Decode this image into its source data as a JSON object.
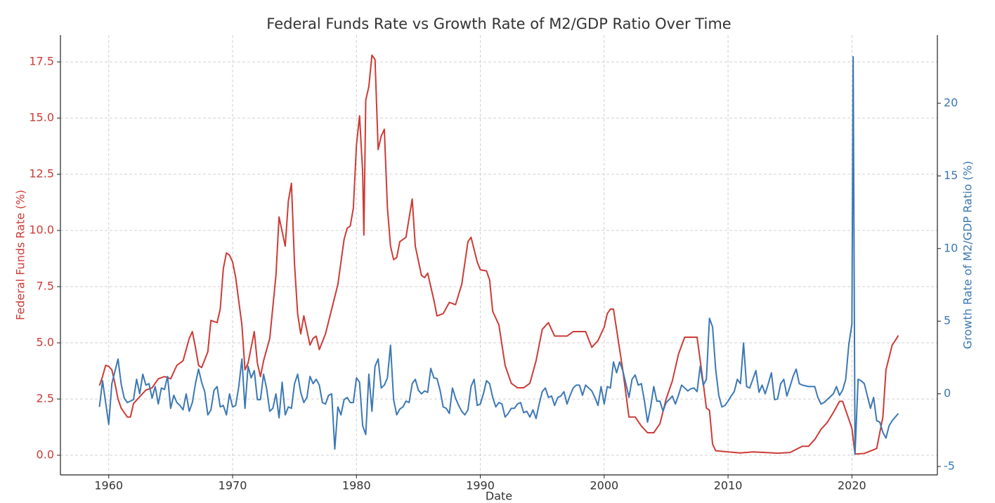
{
  "chart_data": {
    "type": "line",
    "title": "Federal Funds Rate vs Growth Rate of M2/GDP Ratio Over Time",
    "x_label": "Date",
    "y_label": "Federal Funds Rate (%)",
    "y2_label": "Growth Rate of M2/GDP Ratio (%)",
    "xlim": [
      1956.1,
      2026.9
    ],
    "xticks": [
      1960,
      1970,
      1980,
      1990,
      2000,
      2010,
      2020
    ],
    "ylim": [
      -0.875,
      18.69
    ],
    "yticks": [
      {
        "value": 0,
        "label": "0.0"
      },
      2.5,
      {
        "value": 5,
        "label": "5.0"
      },
      7.5,
      {
        "value": 10,
        "label": "10.0"
      },
      12.5,
      {
        "value": 15,
        "label": "15.0"
      },
      17.5
    ],
    "y2lim": [
      -5.58,
      24.69
    ],
    "y2ticks": [
      -5,
      0,
      5,
      10,
      15,
      20
    ],
    "grid": true,
    "series": [
      {
        "name": "Federal Funds Rate (%)",
        "color": "#cc3b36",
        "axis": "y",
        "x": [
          1959.25,
          1959.5,
          1959.75,
          1960,
          1960.25,
          1960.5,
          1960.75,
          1961,
          1961.5,
          1961.75,
          1962,
          1962.5,
          1963,
          1963.5,
          1964,
          1964.5,
          1965,
          1965.5,
          1966,
          1966.5,
          1966.75,
          1967,
          1967.25,
          1967.5,
          1968,
          1968.25,
          1968.75,
          1969,
          1969.25,
          1969.5,
          1969.75,
          1970,
          1970.25,
          1970.75,
          1971,
          1971.25,
          1971.75,
          1972,
          1972.25,
          1972.5,
          1973,
          1973.5,
          1973.75,
          1974.25,
          1974.5,
          1974.75,
          1975,
          1975.25,
          1975.5,
          1975.75,
          1976.25,
          1976.5,
          1976.75,
          1977,
          1977.5,
          1978,
          1978.5,
          1979,
          1979.25,
          1979.5,
          1979.75,
          1980,
          1980.25,
          1980.5,
          1980.6,
          1980.75,
          1981,
          1981.25,
          1981.5,
          1981.75,
          1982,
          1982.25,
          1982.5,
          1982.75,
          1983,
          1983.25,
          1983.5,
          1984,
          1984.5,
          1984.75,
          1985.25,
          1985.5,
          1985.75,
          1986.25,
          1986.5,
          1987,
          1987.5,
          1988,
          1988.5,
          1989,
          1989.25,
          1989.75,
          1990,
          1990.5,
          1990.75,
          1991,
          1991.5,
          1992,
          1992.5,
          1993,
          1993.5,
          1994,
          1994.5,
          1995,
          1995.5,
          1996,
          1996.5,
          1997,
          1997.5,
          1998,
          1998.5,
          1999,
          1999.5,
          2000,
          2000.25,
          2000.5,
          2000.75,
          2001,
          2001.5,
          2002,
          2002.5,
          2003,
          2003.5,
          2004,
          2004.5,
          2005,
          2005.5,
          2006,
          2006.5,
          2007,
          2007.5,
          2008,
          2008.25,
          2008.5,
          2008.75,
          2009,
          2010,
          2011,
          2012,
          2013,
          2014,
          2015,
          2016,
          2016.5,
          2017,
          2017.5,
          2018,
          2018.5,
          2019,
          2019.25,
          2019.75,
          2020,
          2020.25,
          2021,
          2022,
          2022.5,
          2022.75,
          2023.25,
          2023.5,
          2023.75
        ],
        "values": [
          3.1,
          3.5,
          4.0,
          3.95,
          3.8,
          3.2,
          2.5,
          2.1,
          1.7,
          1.7,
          2.3,
          2.6,
          2.9,
          3.0,
          3.4,
          3.5,
          3.4,
          4.0,
          4.2,
          5.2,
          5.5,
          4.8,
          4.0,
          3.9,
          4.6,
          6.0,
          5.9,
          6.5,
          8.3,
          9.0,
          8.9,
          8.6,
          7.9,
          5.8,
          3.8,
          4.1,
          5.5,
          4.1,
          3.5,
          4.2,
          5.2,
          8.0,
          10.6,
          9.3,
          11.3,
          12.1,
          8.5,
          6.3,
          5.4,
          6.2,
          4.9,
          5.2,
          5.3,
          4.7,
          5.4,
          6.5,
          7.6,
          9.6,
          10.1,
          10.2,
          11.0,
          13.8,
          15.1,
          12.6,
          9.8,
          15.8,
          16.4,
          17.8,
          17.6,
          13.6,
          14.2,
          14.5,
          11.0,
          9.3,
          8.7,
          8.8,
          9.5,
          9.7,
          11.4,
          9.3,
          8.0,
          7.9,
          8.1,
          6.9,
          6.2,
          6.3,
          6.8,
          6.7,
          7.6,
          9.5,
          9.7,
          8.6,
          8.25,
          8.2,
          7.8,
          6.4,
          5.8,
          4.0,
          3.2,
          3.0,
          3.0,
          3.2,
          4.2,
          5.6,
          5.9,
          5.3,
          5.3,
          5.3,
          5.5,
          5.5,
          5.5,
          4.8,
          5.1,
          5.7,
          6.3,
          6.5,
          6.5,
          5.6,
          3.8,
          1.7,
          1.7,
          1.3,
          1.0,
          1.0,
          1.4,
          2.5,
          3.3,
          4.5,
          5.25,
          5.25,
          5.25,
          3.2,
          2.1,
          2.0,
          0.5,
          0.2,
          0.15,
          0.1,
          0.15,
          0.12,
          0.09,
          0.12,
          0.4,
          0.4,
          0.7,
          1.15,
          1.45,
          1.9,
          2.4,
          2.4,
          1.6,
          1.2,
          0.05,
          0.08,
          0.3,
          1.7,
          3.8,
          4.9,
          5.1,
          5.33
        ]
      },
      {
        "name": "Growth Rate of M2/GDP Ratio (%)",
        "color": "#3b78b4",
        "axis": "y2",
        "x": [
          1959.25,
          1959.5,
          1960,
          1960.25,
          1960.75,
          1961,
          1961.25,
          1961.5,
          1962,
          1962.25,
          1962.5,
          1962.75,
          1963,
          1963.25,
          1963.5,
          1963.75,
          1964,
          1964.25,
          1964.5,
          1964.75,
          1965,
          1965.25,
          1965.5,
          1965.75,
          1966,
          1966.25,
          1966.5,
          1966.75,
          1967,
          1967.25,
          1967.5,
          1967.75,
          1968,
          1968.25,
          1968.5,
          1968.75,
          1969,
          1969.25,
          1969.5,
          1969.75,
          1970,
          1970.25,
          1970.5,
          1970.75,
          1971,
          1971.25,
          1971.5,
          1971.75,
          1972,
          1972.25,
          1972.5,
          1972.75,
          1973,
          1973.25,
          1973.5,
          1973.75,
          1974,
          1974.25,
          1974.5,
          1974.75,
          1975,
          1975.25,
          1975.5,
          1975.75,
          1976,
          1976.25,
          1976.5,
          1976.75,
          1977,
          1977.25,
          1977.5,
          1977.75,
          1978,
          1978.25,
          1978.5,
          1978.75,
          1979,
          1979.25,
          1979.5,
          1979.75,
          1980,
          1980.25,
          1980.5,
          1980.75,
          1981,
          1981.25,
          1981.5,
          1981.75,
          1982,
          1982.25,
          1982.5,
          1982.75,
          1983,
          1983.25,
          1983.5,
          1983.75,
          1984,
          1984.25,
          1984.5,
          1984.75,
          1985,
          1985.25,
          1985.5,
          1985.75,
          1986,
          1986.25,
          1986.5,
          1986.75,
          1987,
          1987.25,
          1987.5,
          1987.75,
          1988,
          1988.25,
          1988.5,
          1988.75,
          1989,
          1989.25,
          1989.5,
          1989.75,
          1990,
          1990.25,
          1990.5,
          1990.75,
          1991,
          1991.25,
          1991.5,
          1991.75,
          1992,
          1992.25,
          1992.5,
          1992.75,
          1993,
          1993.25,
          1993.5,
          1993.75,
          1994,
          1994.25,
          1994.5,
          1994.75,
          1995,
          1995.25,
          1995.5,
          1995.75,
          1996,
          1996.25,
          1996.5,
          1996.75,
          1997,
          1997.25,
          1997.5,
          1997.75,
          1998,
          1998.25,
          1998.5,
          1998.75,
          1999,
          1999.25,
          1999.5,
          1999.75,
          2000,
          2000.25,
          2000.5,
          2000.75,
          2001,
          2001.25,
          2001.5,
          2001.75,
          2002,
          2002.25,
          2002.5,
          2002.75,
          2003,
          2003.25,
          2003.5,
          2003.75,
          2004,
          2004.25,
          2004.5,
          2004.75,
          2005,
          2005.25,
          2005.5,
          2005.75,
          2006,
          2006.25,
          2006.5,
          2006.75,
          2007,
          2007.25,
          2007.5,
          2007.75,
          2008,
          2008.25,
          2008.5,
          2008.75,
          2009,
          2009.25,
          2009.5,
          2009.75,
          2010,
          2010.25,
          2010.5,
          2010.75,
          2011,
          2011.25,
          2011.5,
          2011.75,
          2012,
          2012.25,
          2012.5,
          2012.75,
          2013,
          2013.25,
          2013.5,
          2013.75,
          2014,
          2014.25,
          2014.5,
          2014.75,
          2015,
          2015.25,
          2015.5,
          2015.75,
          2016,
          2016.5,
          2017,
          2017.25,
          2017.5,
          2017.75,
          2018,
          2018.5,
          2018.75,
          2019,
          2019.25,
          2019.5,
          2019.75,
          2020,
          2020.1,
          2020.25,
          2020.5,
          2020.75,
          2021,
          2021.25,
          2021.5,
          2021.75,
          2022,
          2022.25,
          2022.5,
          2022.75,
          2023,
          2023.25,
          2023.75
        ],
        "values": [
          -0.9,
          0.9,
          -2.1,
          0.7,
          2.4,
          0.7,
          -0.3,
          -0.6,
          -0.4,
          1.0,
          0,
          1.35,
          0.6,
          0.7,
          -0.3,
          0.5,
          -0.7,
          0.4,
          0.3,
          1.2,
          -1.0,
          -0.1,
          -0.6,
          -0.8,
          -1.1,
          0,
          -1.2,
          -0.6,
          0.7,
          1.7,
          0.8,
          0.15,
          -1.45,
          -1.1,
          0.25,
          0.5,
          -0.9,
          -0.8,
          -1.45,
          0,
          -0.9,
          -0.8,
          0.5,
          2.4,
          -1.0,
          1.9,
          1.1,
          1.6,
          -0.4,
          -0.4,
          1.35,
          0.35,
          -1.2,
          -1.0,
          0,
          -1.65,
          0.8,
          -1.45,
          -0.9,
          -1.0,
          0.7,
          1.35,
          0.1,
          -0.6,
          -0.25,
          1.2,
          0.7,
          1.0,
          0.6,
          -0.6,
          -0.7,
          -0.1,
          0,
          -3.8,
          -0.9,
          -1.45,
          -0.4,
          -0.25,
          -0.6,
          -0.6,
          1.1,
          0.8,
          -2.2,
          -2.8,
          1.35,
          -1.2,
          1.9,
          2.4,
          0.4,
          0.6,
          1.1,
          3.35,
          -0.4,
          -1.45,
          -1.05,
          -0.9,
          -0.5,
          -0.6,
          0.7,
          1.0,
          0.25,
          0,
          0.2,
          0.1,
          1.75,
          1.1,
          1.05,
          0.25,
          -0.9,
          -1.0,
          -1.35,
          0.4,
          -0.3,
          -0.8,
          -1.2,
          -1.45,
          -1.1,
          0.5,
          1.0,
          -0.8,
          -0.7,
          0,
          0.9,
          0.7,
          -0.25,
          -0.9,
          -0.6,
          -0.7,
          -1.6,
          -1.35,
          -1.0,
          -1.0,
          -0.7,
          -0.6,
          -1.3,
          -1.2,
          -1.6,
          -1.1,
          -1.7,
          -0.7,
          0.15,
          0.4,
          -0.25,
          -0.15,
          -0.8,
          -0.25,
          -0.15,
          0.15,
          -0.7,
          -0.1,
          0.4,
          0.6,
          0.6,
          -0.1,
          0.6,
          0.4,
          0.2,
          -0.25,
          -0.8,
          0.5,
          -0.7,
          0.5,
          0.4,
          2.2,
          1.45,
          2.2,
          1.6,
          0.7,
          -0.25,
          1.0,
          1.3,
          0.6,
          0.7,
          -0.5,
          -1.95,
          -0.9,
          0.5,
          -0.5,
          -0.5,
          -1.2,
          -0.6,
          -0.4,
          -0.15,
          -0.7,
          -0.1,
          0.6,
          0.4,
          0.2,
          0.35,
          0.4,
          0.15,
          1.9,
          0.6,
          1.0,
          5.2,
          4.6,
          1.7,
          -0.1,
          -0.9,
          -0.8,
          -0.5,
          -0.15,
          0.15,
          1.0,
          0.7,
          3.5,
          0.5,
          0.4,
          1.0,
          1.6,
          0.1,
          0.6,
          0,
          0.7,
          1.45,
          -0.4,
          -0.35,
          0.7,
          1.0,
          -0.15,
          0.5,
          1.2,
          1.7,
          0.7,
          0.6,
          0.5,
          0.5,
          -0.25,
          -0.7,
          -0.6,
          -0.4,
          0,
          0.5,
          -0.1,
          0.25,
          1.0,
          3.4,
          4.8,
          23.2,
          -4.15,
          1.0,
          0.9,
          0.7,
          -0.15,
          -1.0,
          -0.25,
          -1.85,
          -1.95,
          -2.65,
          -3.05,
          -2.2,
          -1.85,
          -1.35
        ]
      }
    ]
  }
}
